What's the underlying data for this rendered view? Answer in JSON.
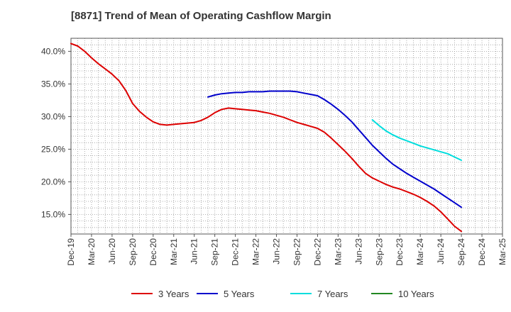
{
  "chart_data": {
    "type": "line",
    "title": "[8871]  Trend of Mean of Operating Cashflow Margin",
    "x_tick_labels": [
      "Dec-19",
      "Mar-20",
      "Jun-20",
      "Sep-20",
      "Dec-20",
      "Mar-21",
      "Jun-21",
      "Sep-21",
      "Dec-21",
      "Mar-22",
      "Jun-22",
      "Sep-22",
      "Dec-22",
      "Mar-23",
      "Jun-23",
      "Sep-23",
      "Dec-23",
      "Mar-24",
      "Jun-24",
      "Sep-24",
      "Dec-24",
      "Mar-25"
    ],
    "y_tick_labels": [
      "15.0%",
      "20.0%",
      "25.0%",
      "30.0%",
      "35.0%",
      "40.0%"
    ],
    "y_ticks": [
      15,
      20,
      25,
      30,
      35,
      40
    ],
    "ylim": [
      12,
      42
    ],
    "x_unit": "month",
    "grid": true,
    "legend_position": "bottom",
    "series": [
      {
        "name": "3 Years",
        "color": "#dd0000",
        "points": [
          [
            "Dec-19",
            41.2
          ],
          [
            "Jan-20",
            40.8
          ],
          [
            "Feb-20",
            40.0
          ],
          [
            "Mar-20",
            39.0
          ],
          [
            "Apr-20",
            38.1
          ],
          [
            "May-20",
            37.3
          ],
          [
            "Jun-20",
            36.5
          ],
          [
            "Jul-20",
            35.5
          ],
          [
            "Aug-20",
            34.0
          ],
          [
            "Sep-20",
            32.0
          ],
          [
            "Oct-20",
            30.8
          ],
          [
            "Nov-20",
            29.9
          ],
          [
            "Dec-20",
            29.2
          ],
          [
            "Jan-21",
            28.8
          ],
          [
            "Feb-21",
            28.7
          ],
          [
            "Mar-21",
            28.8
          ],
          [
            "Apr-21",
            28.9
          ],
          [
            "May-21",
            29.0
          ],
          [
            "Jun-21",
            29.1
          ],
          [
            "Jul-21",
            29.4
          ],
          [
            "Aug-21",
            29.9
          ],
          [
            "Sep-21",
            30.6
          ],
          [
            "Oct-21",
            31.1
          ],
          [
            "Nov-21",
            31.3
          ],
          [
            "Dec-21",
            31.2
          ],
          [
            "Jan-22",
            31.1
          ],
          [
            "Feb-22",
            31.0
          ],
          [
            "Mar-22",
            30.9
          ],
          [
            "Apr-22",
            30.7
          ],
          [
            "May-22",
            30.5
          ],
          [
            "Jun-22",
            30.2
          ],
          [
            "Jul-22",
            29.9
          ],
          [
            "Aug-22",
            29.5
          ],
          [
            "Sep-22",
            29.1
          ],
          [
            "Oct-22",
            28.8
          ],
          [
            "Nov-22",
            28.5
          ],
          [
            "Dec-22",
            28.2
          ],
          [
            "Jan-23",
            27.6
          ],
          [
            "Feb-23",
            26.7
          ],
          [
            "Mar-23",
            25.7
          ],
          [
            "Apr-23",
            24.7
          ],
          [
            "May-23",
            23.6
          ],
          [
            "Jun-23",
            22.4
          ],
          [
            "Jul-23",
            21.3
          ],
          [
            "Aug-23",
            20.6
          ],
          [
            "Sep-23",
            20.1
          ],
          [
            "Oct-23",
            19.6
          ],
          [
            "Nov-23",
            19.2
          ],
          [
            "Dec-23",
            18.9
          ],
          [
            "Jan-24",
            18.5
          ],
          [
            "Feb-24",
            18.1
          ],
          [
            "Mar-24",
            17.6
          ],
          [
            "Apr-24",
            17.0
          ],
          [
            "May-24",
            16.3
          ],
          [
            "Jun-24",
            15.4
          ],
          [
            "Jul-24",
            14.3
          ],
          [
            "Aug-24",
            13.2
          ],
          [
            "Sep-24",
            12.4
          ]
        ]
      },
      {
        "name": "5 Years",
        "color": "#0000cc",
        "points": [
          [
            "Aug-21",
            33.0
          ],
          [
            "Sep-21",
            33.3
          ],
          [
            "Oct-21",
            33.5
          ],
          [
            "Nov-21",
            33.6
          ],
          [
            "Dec-21",
            33.7
          ],
          [
            "Jan-22",
            33.7
          ],
          [
            "Feb-22",
            33.8
          ],
          [
            "Mar-22",
            33.8
          ],
          [
            "Apr-22",
            33.8
          ],
          [
            "May-22",
            33.9
          ],
          [
            "Jun-22",
            33.9
          ],
          [
            "Jul-22",
            33.9
          ],
          [
            "Aug-22",
            33.9
          ],
          [
            "Sep-22",
            33.8
          ],
          [
            "Oct-22",
            33.6
          ],
          [
            "Nov-22",
            33.4
          ],
          [
            "Dec-22",
            33.2
          ],
          [
            "Jan-23",
            32.6
          ],
          [
            "Feb-23",
            31.9
          ],
          [
            "Mar-23",
            31.1
          ],
          [
            "Apr-23",
            30.2
          ],
          [
            "May-23",
            29.2
          ],
          [
            "Jun-23",
            28.0
          ],
          [
            "Jul-23",
            26.8
          ],
          [
            "Aug-23",
            25.6
          ],
          [
            "Sep-23",
            24.6
          ],
          [
            "Oct-23",
            23.6
          ],
          [
            "Nov-23",
            22.7
          ],
          [
            "Dec-23",
            22.0
          ],
          [
            "Jan-24",
            21.3
          ],
          [
            "Feb-24",
            20.7
          ],
          [
            "Mar-24",
            20.1
          ],
          [
            "Apr-24",
            19.5
          ],
          [
            "May-24",
            18.9
          ],
          [
            "Jun-24",
            18.2
          ],
          [
            "Jul-24",
            17.5
          ],
          [
            "Aug-24",
            16.8
          ],
          [
            "Sep-24",
            16.1
          ]
        ]
      },
      {
        "name": "7 Years",
        "color": "#00dddd",
        "points": [
          [
            "Aug-23",
            29.5
          ],
          [
            "Sep-23",
            28.6
          ],
          [
            "Oct-23",
            27.8
          ],
          [
            "Nov-23",
            27.2
          ],
          [
            "Dec-23",
            26.7
          ],
          [
            "Jan-24",
            26.3
          ],
          [
            "Feb-24",
            25.9
          ],
          [
            "Mar-24",
            25.5
          ],
          [
            "Apr-24",
            25.2
          ],
          [
            "May-24",
            24.9
          ],
          [
            "Jun-24",
            24.6
          ],
          [
            "Jul-24",
            24.3
          ],
          [
            "Aug-24",
            23.8
          ],
          [
            "Sep-24",
            23.3
          ]
        ]
      },
      {
        "name": "10 Years",
        "color": "#228822",
        "points": []
      }
    ]
  }
}
